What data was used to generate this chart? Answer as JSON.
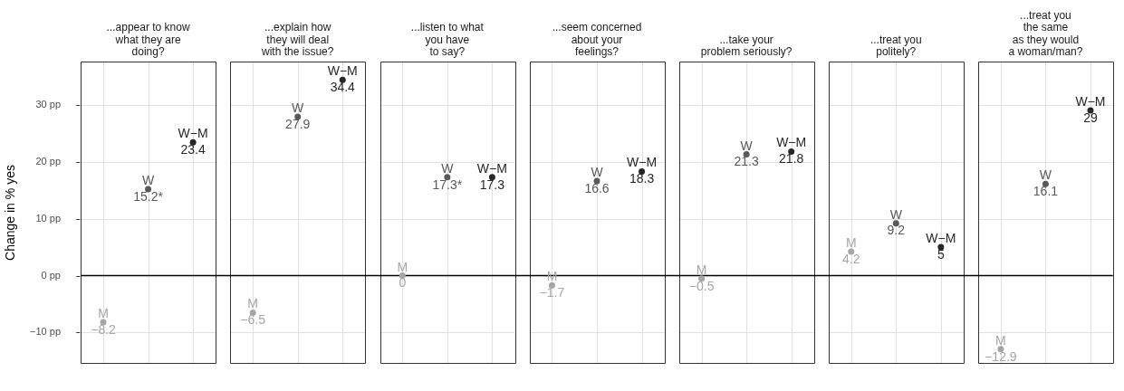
{
  "chart_data": {
    "type": "scatter",
    "ylabel": "Change in % yes",
    "categories": [
      "...appear to know\nwhat they are\ndoing?",
      "...explain how\nthey will deal\nwith the issue?",
      "...listen to what\nyou have\nto say?",
      "...seem concerned\nabout your\nfeelings?",
      "...take your\nproblem seriously?",
      "...treat you\npolitely?",
      "...treat you\nthe same\nas they would\na woman/man?"
    ],
    "series": [
      {
        "name": "M",
        "color": "#a6a6a6",
        "values": [
          -8.2,
          -6.5,
          0,
          -1.7,
          -0.5,
          4.2,
          -12.9
        ],
        "value_labels": [
          "−8.2",
          "−6.5",
          "0",
          "−1.7",
          "−0.5",
          "4.2",
          "−12.9"
        ]
      },
      {
        "name": "W",
        "color": "#595959",
        "values": [
          15.2,
          27.9,
          17.3,
          16.6,
          21.3,
          9.2,
          16.1
        ],
        "value_labels": [
          "15.2*",
          "27.9",
          "17.3*",
          "16.6",
          "21.3",
          "9.2",
          "16.1"
        ]
      },
      {
        "name": "W−M",
        "color": "#262626",
        "values": [
          23.4,
          34.4,
          17.3,
          18.3,
          21.8,
          5,
          29
        ],
        "value_labels": [
          "23.4",
          "34.4",
          "17.3",
          "18.3",
          "21.8",
          "5",
          "29"
        ]
      }
    ],
    "ylim": [
      -15.5,
      37.6
    ],
    "yticks": [
      {
        "value": -10,
        "label": "−10 pp"
      },
      {
        "value": 0,
        "label": "0 pp"
      },
      {
        "value": 10,
        "label": "10 pp"
      },
      {
        "value": 20,
        "label": "20 pp"
      },
      {
        "value": 30,
        "label": "30 pp"
      }
    ],
    "ref_lines": [
      {
        "axis": "y",
        "value": 0,
        "color": "#000000"
      }
    ],
    "grid": true,
    "legend": false,
    "marker": "circle"
  }
}
